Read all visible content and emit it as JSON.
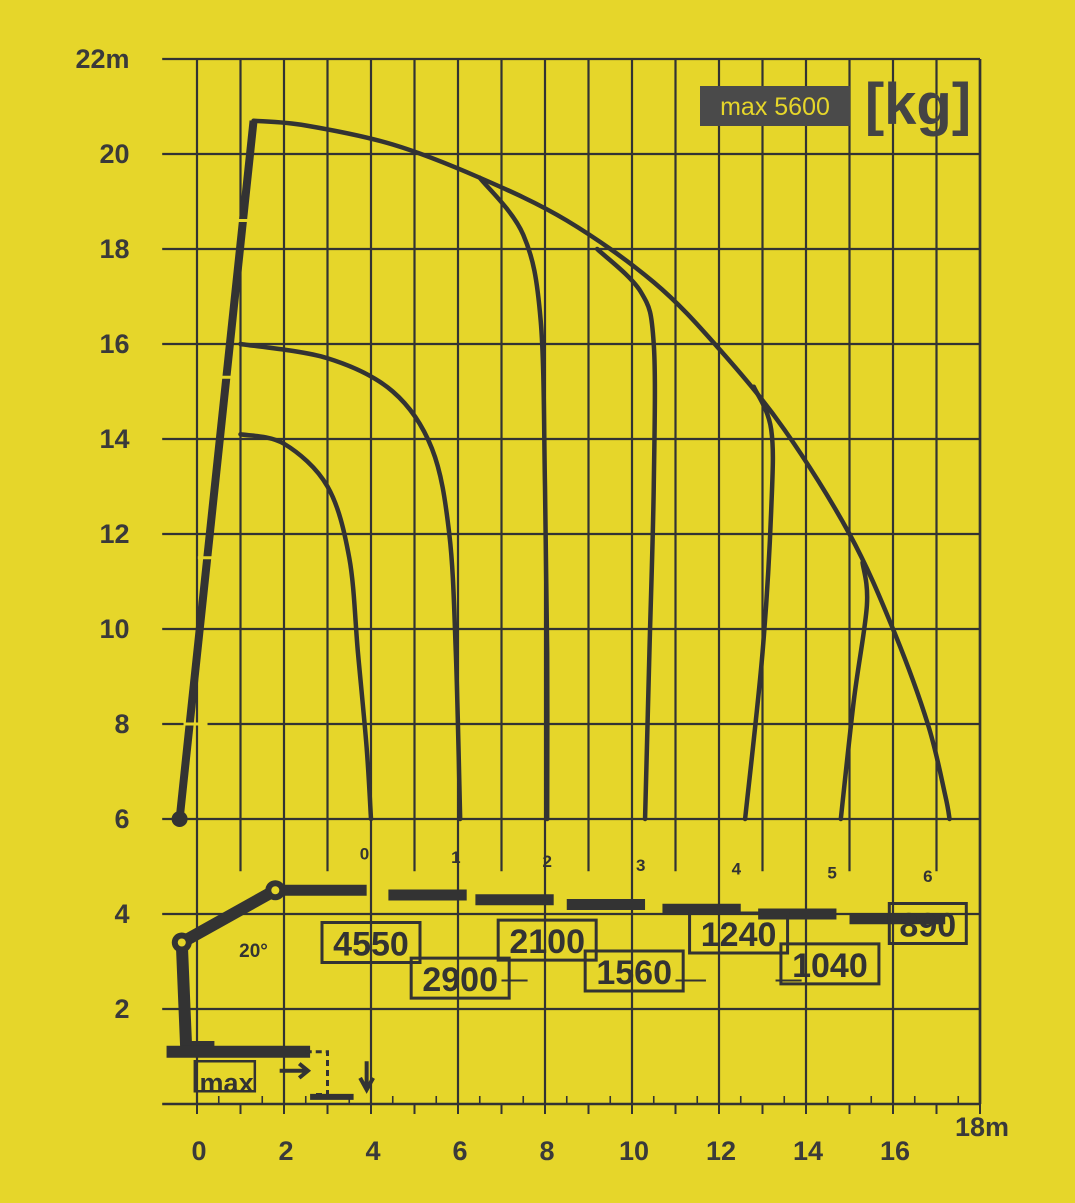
{
  "chart_data": {
    "type": "line",
    "title": "",
    "max_label": "max 5600",
    "unit_label": "[kg]",
    "x_unit_label": "18m",
    "y_unit_label": "22m",
    "x_ticks": [
      "0",
      "2",
      "4",
      "6",
      "8",
      "10",
      "12",
      "14",
      "16"
    ],
    "y_ticks": [
      "2",
      "4",
      "6",
      "8",
      "10",
      "12",
      "14",
      "16",
      "18",
      "20"
    ],
    "xlim": [
      -1,
      18
    ],
    "ylim": [
      -0.5,
      22
    ],
    "grid": true,
    "angle_label": "20°",
    "base_label": "max",
    "extension_labels": [
      "0",
      "1",
      "2",
      "3",
      "4",
      "5",
      "6"
    ],
    "loads": [
      {
        "extension": "0",
        "load": "4550"
      },
      {
        "extension": "1",
        "load": "2900"
      },
      {
        "extension": "2",
        "load": "2100"
      },
      {
        "extension": "3",
        "load": "1560"
      },
      {
        "extension": "4",
        "load": "1240"
      },
      {
        "extension": "5",
        "load": "1040"
      },
      {
        "extension": "6",
        "load": "890"
      }
    ],
    "series": [
      {
        "extension": "0",
        "points": [
          [
            1,
            14.1
          ],
          [
            2,
            13.9
          ],
          [
            3,
            13.0
          ],
          [
            3.5,
            11.5
          ],
          [
            3.7,
            9.5
          ],
          [
            3.9,
            7.5
          ],
          [
            4.0,
            6.0
          ]
        ]
      },
      {
        "extension": "1",
        "points": [
          [
            1,
            16.0
          ],
          [
            3,
            15.7
          ],
          [
            4.5,
            15.0
          ],
          [
            5.4,
            13.8
          ],
          [
            5.8,
            12.0
          ],
          [
            5.95,
            9.5
          ],
          [
            6.05,
            6.0
          ]
        ]
      },
      {
        "extension": "2",
        "points": [
          [
            6.5,
            19.5
          ],
          [
            7.5,
            18.3
          ],
          [
            7.9,
            16.5
          ],
          [
            8.0,
            13.0
          ],
          [
            8.05,
            9.5
          ],
          [
            8.05,
            6.0
          ]
        ]
      },
      {
        "extension": "3",
        "points": [
          [
            9.2,
            18.0
          ],
          [
            10.2,
            17.1
          ],
          [
            10.5,
            16.0
          ],
          [
            10.5,
            13.0
          ],
          [
            10.4,
            9.5
          ],
          [
            10.3,
            6.0
          ]
        ]
      },
      {
        "extension": "4",
        "points": [
          [
            12.8,
            15.1
          ],
          [
            13.2,
            14.2
          ],
          [
            13.2,
            12.5
          ],
          [
            13.0,
            9.5
          ],
          [
            12.6,
            6.0
          ]
        ]
      },
      {
        "extension": "5",
        "points": [
          [
            15.3,
            11.4
          ],
          [
            15.4,
            10.5
          ],
          [
            15.1,
            8.5
          ],
          [
            14.8,
            6.0
          ]
        ]
      },
      {
        "extension": "6",
        "points": [
          [
            1.3,
            20.7
          ],
          [
            2.5,
            20.6
          ],
          [
            4.5,
            20.2
          ],
          [
            6.5,
            19.5
          ],
          [
            8.5,
            18.6
          ],
          [
            10.5,
            17.3
          ],
          [
            12,
            15.9
          ],
          [
            13.5,
            14.2
          ],
          [
            15,
            12.0
          ],
          [
            16,
            10.0
          ],
          [
            16.8,
            8.0
          ],
          [
            17.2,
            6.5
          ],
          [
            17.3,
            6.0
          ]
        ]
      }
    ],
    "boom_main": [
      [
        -0.4,
        6.0
      ],
      [
        1.3,
        20.7
      ]
    ],
    "boom_inner_start": [
      -0.35,
      3.4
    ],
    "boom_knuckle": [
      1.8,
      4.5
    ],
    "boom_horizontal_end": [
      17.2,
      4.5
    ]
  },
  "colors": {
    "background": "#e6d62a",
    "ink": "#333333",
    "grid": "#333333",
    "badge_bg": "#4a4a4a"
  }
}
